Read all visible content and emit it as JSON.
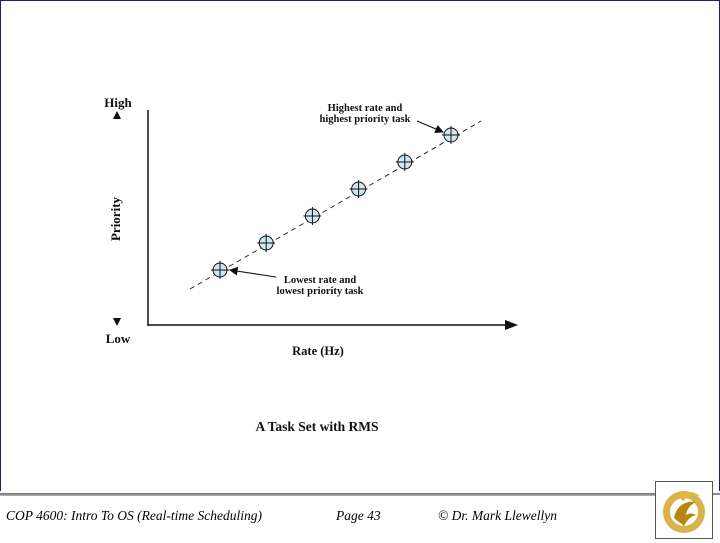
{
  "diagram": {
    "y_top_label": "High",
    "y_bottom_label": "Low",
    "y_axis_label": "Priority",
    "x_axis_label": "Rate (Hz)",
    "caption": "A Task Set with RMS",
    "annotation_top_line1": "Highest rate and",
    "annotation_top_line2": "highest priority task",
    "annotation_bottom_line1": "Lowest rate and",
    "annotation_bottom_line2": "lowest priority task",
    "task_count": 6,
    "colors": {
      "marker_fill": "#cfe7f2",
      "ink": "#111111"
    }
  },
  "footer": {
    "course": "COP 4600: Intro To OS  (Real-time Scheduling)",
    "page": "Page 43",
    "copyright": "© Dr. Mark Llewellyn",
    "logo_icon": "ucf-pegasus-logo-icon"
  }
}
